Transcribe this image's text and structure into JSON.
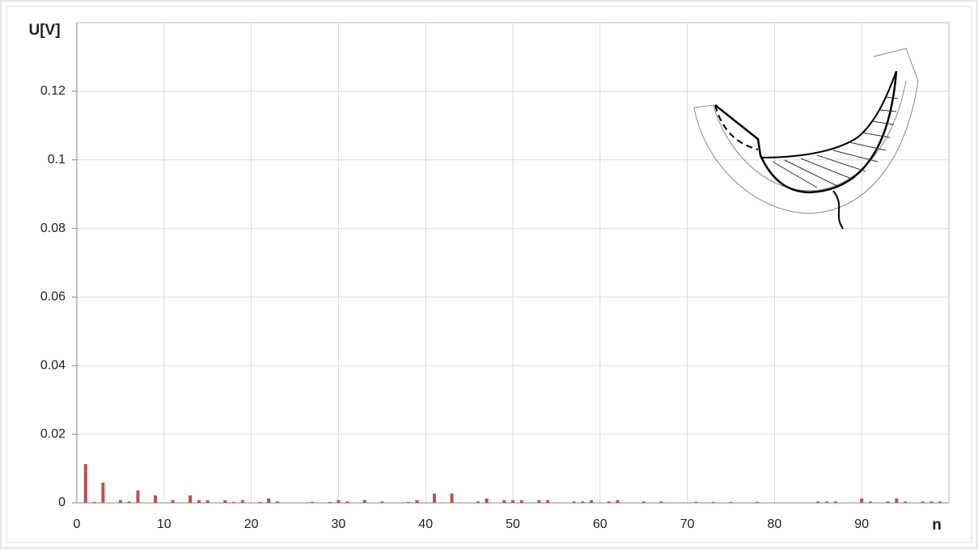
{
  "chart_data": {
    "type": "bar",
    "y_label": "U[V]",
    "x_label": "n",
    "x": [
      1,
      2,
      3,
      5,
      6,
      7,
      9,
      11,
      13,
      14,
      15,
      17,
      18,
      19,
      21,
      22,
      23,
      27,
      29,
      30,
      31,
      33,
      35,
      38,
      39,
      41,
      43,
      46,
      47,
      49,
      50,
      51,
      53,
      54,
      57,
      58,
      59,
      61,
      62,
      65,
      67,
      71,
      73,
      75,
      78,
      85,
      86,
      87,
      90,
      91,
      93,
      94,
      95,
      97,
      98,
      99
    ],
    "values": [
      0.0113,
      0.0003,
      0.0059,
      0.0008,
      0.0004,
      0.0036,
      0.0022,
      0.0008,
      0.0022,
      0.0008,
      0.0008,
      0.0008,
      0.0003,
      0.0008,
      0.0003,
      0.0013,
      0.0004,
      0.0003,
      0.0003,
      0.0008,
      0.0004,
      0.0008,
      0.0004,
      0.0003,
      0.0008,
      0.0027,
      0.0027,
      0.0004,
      0.0013,
      0.0008,
      0.0008,
      0.0008,
      0.0008,
      0.0008,
      0.0004,
      0.0004,
      0.0008,
      0.0004,
      0.0008,
      0.0004,
      0.0004,
      0.0003,
      0.0003,
      0.0003,
      0.0003,
      0.0004,
      0.0004,
      0.0004,
      0.0013,
      0.0004,
      0.0004,
      0.0013,
      0.0004,
      0.0004,
      0.0004,
      0.0004
    ],
    "color": "#c0504d",
    "xlim": [
      0,
      100
    ],
    "xticks": [
      0,
      10,
      20,
      30,
      40,
      50,
      60,
      70,
      80,
      90
    ],
    "ylim": [
      0,
      0.14
    ],
    "yticks": [
      0,
      0.02,
      0.04,
      0.06,
      0.08,
      0.1,
      0.12
    ],
    "grid": true
  }
}
